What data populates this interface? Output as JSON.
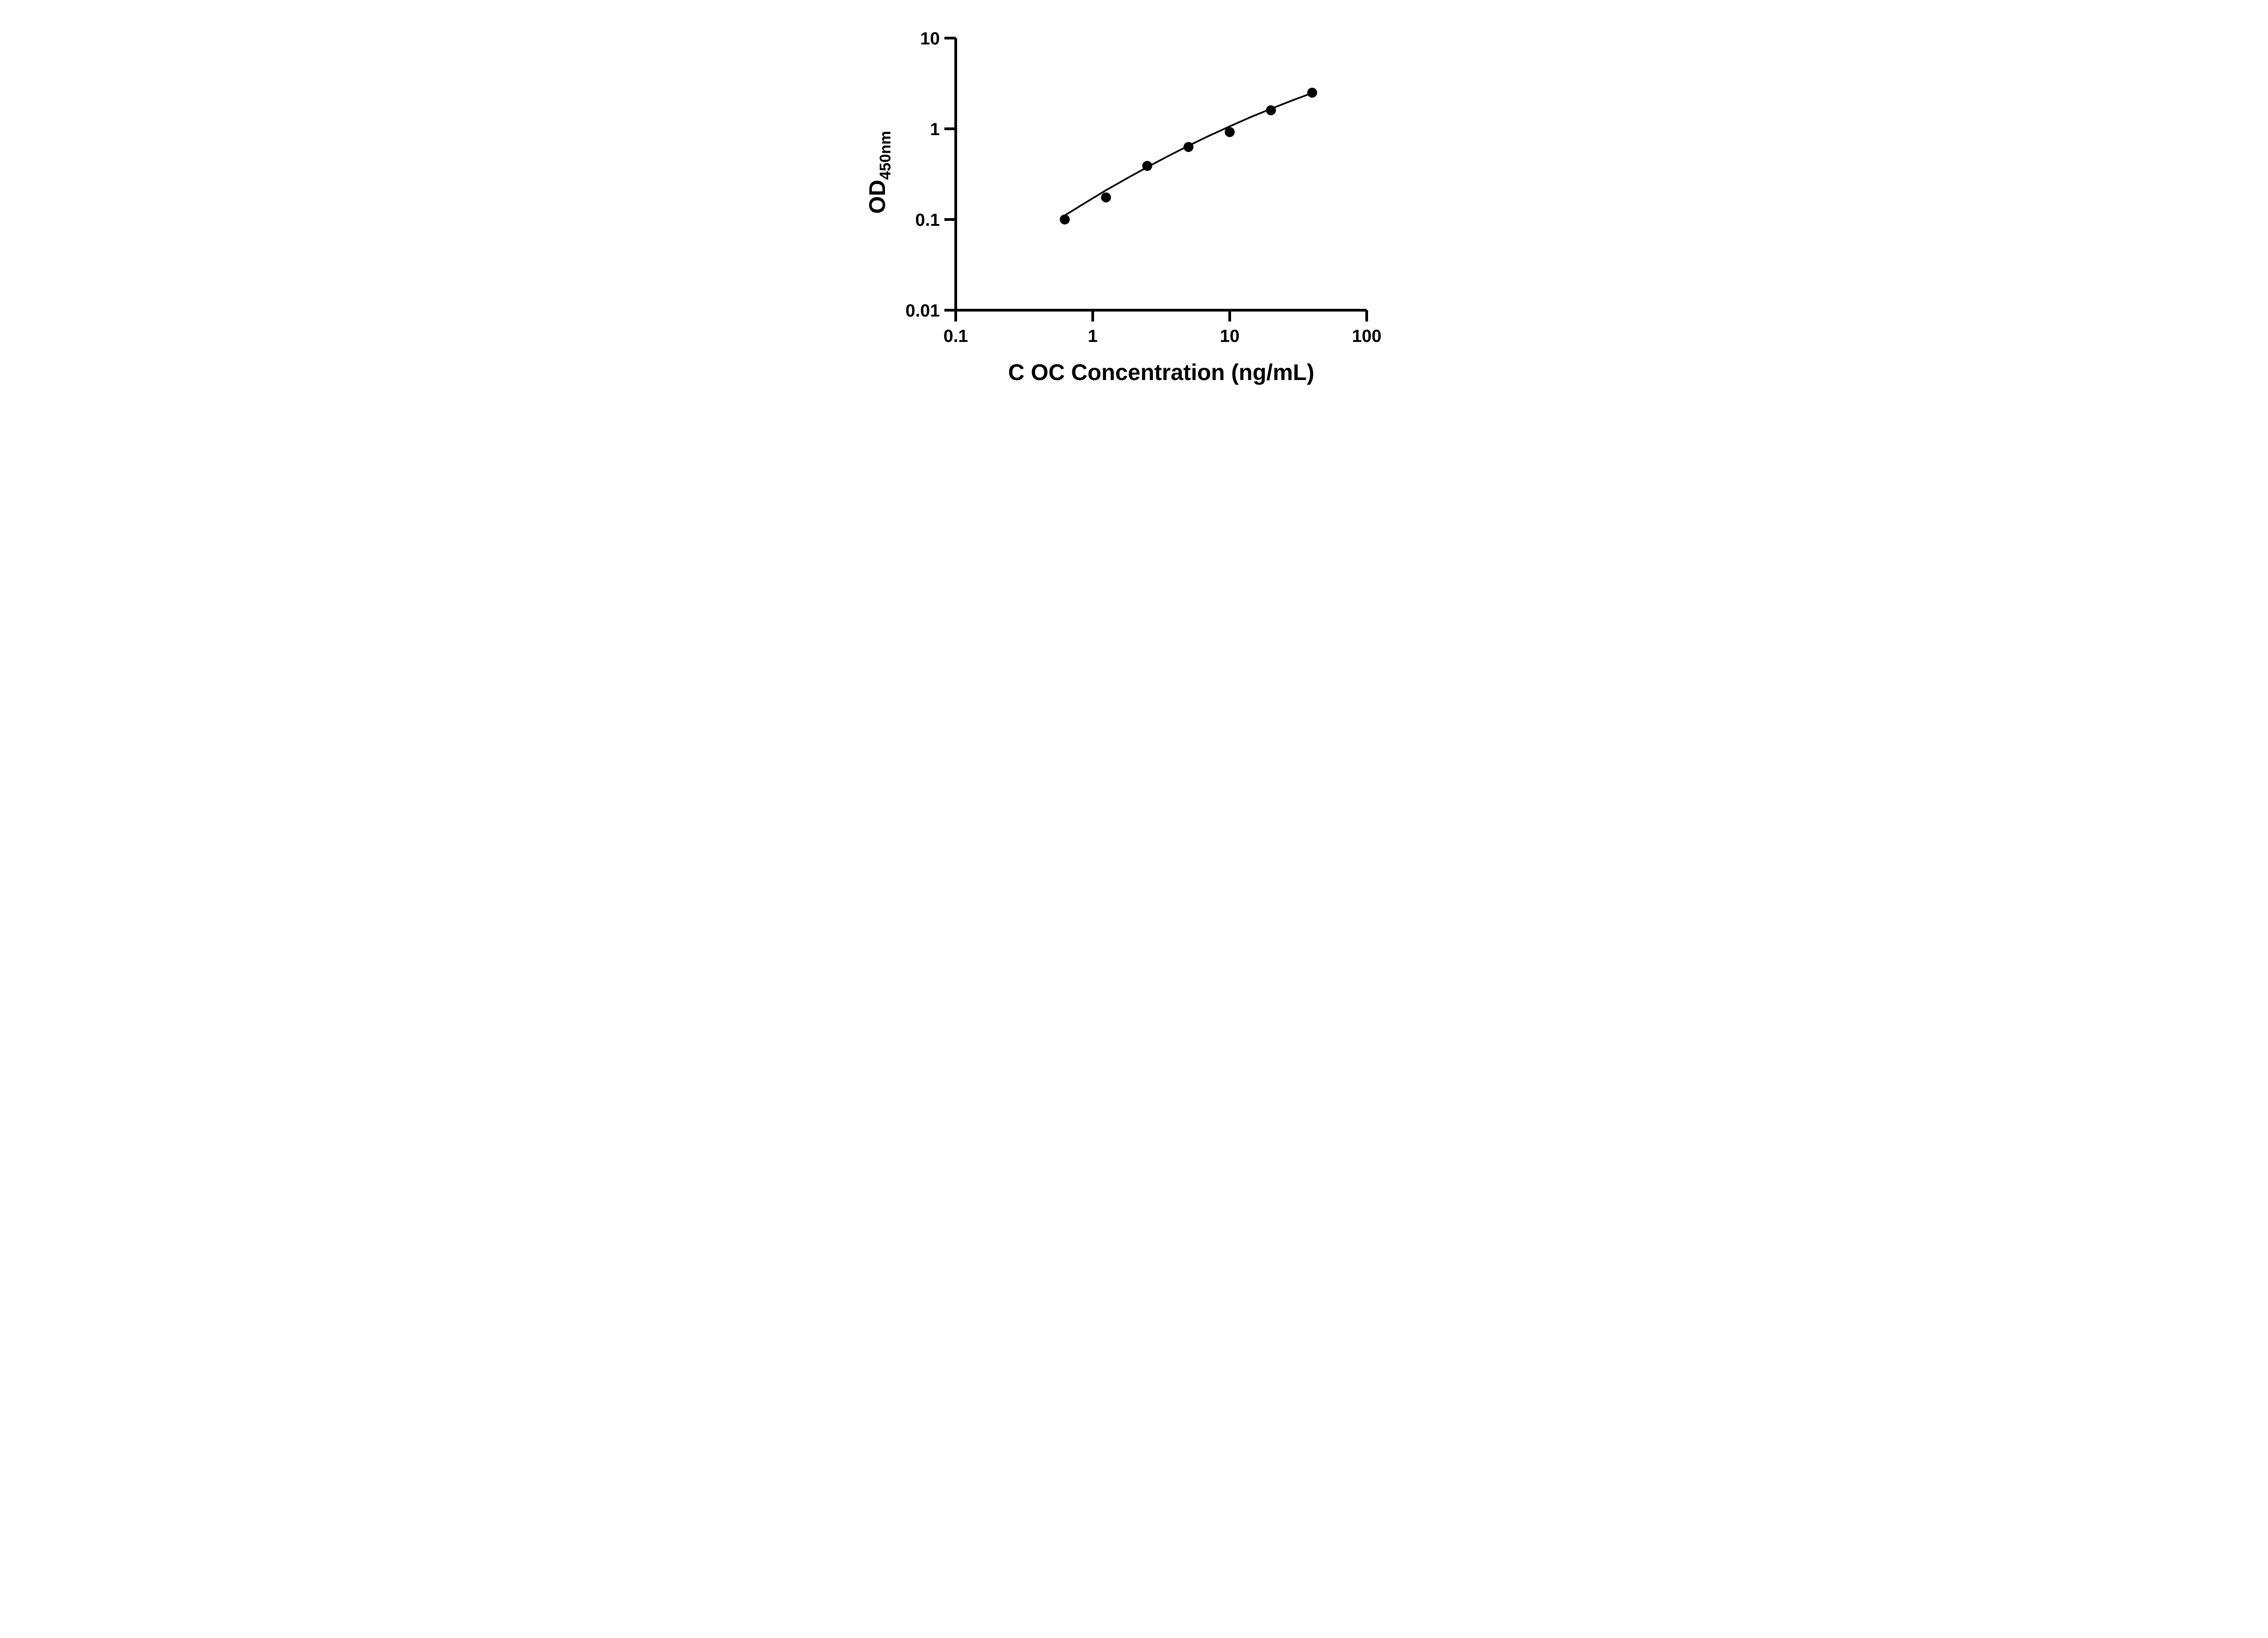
{
  "figure": {
    "background": "#ffffff",
    "ink": "#000000"
  },
  "chart_data": {
    "type": "scatter",
    "title": "",
    "xlabel": "C OC Concentration (ng/mL)",
    "ylabel": {
      "base": "OD",
      "subscript": "450nm"
    },
    "x_scale": "log",
    "y_scale": "log",
    "xlim": [
      0.1,
      100
    ],
    "ylim": [
      0.01,
      10
    ],
    "x_ticks": {
      "values": [
        0.1,
        1,
        10,
        100
      ],
      "labels": [
        "0.1",
        "1",
        "10",
        "100"
      ]
    },
    "y_ticks": {
      "values": [
        10,
        1,
        0.1,
        0.01
      ],
      "labels": [
        "10",
        "1",
        "0.1",
        "0.01"
      ]
    },
    "grid": false,
    "legend": "none",
    "marker": {
      "shape": "circle",
      "color": "#000000",
      "radius_px": 11
    },
    "series": [
      {
        "name": "standard-points",
        "type": "scatter",
        "x": [
          0.625,
          1.25,
          2.5,
          5,
          10,
          20,
          40
        ],
        "y": [
          0.1,
          0.175,
          0.39,
          0.63,
          0.92,
          1.6,
          2.5
        ]
      },
      {
        "name": "fit-line",
        "type": "line",
        "x": [
          0.638,
          0.902,
          1.27,
          1.8,
          2.54,
          3.59,
          5.07,
          7.16,
          10.1,
          14.3,
          20.2,
          28.5,
          40.0
        ],
        "y": [
          0.113,
          0.156,
          0.213,
          0.287,
          0.383,
          0.504,
          0.657,
          0.845,
          1.07,
          1.35,
          1.67,
          2.05,
          2.48
        ]
      }
    ]
  }
}
